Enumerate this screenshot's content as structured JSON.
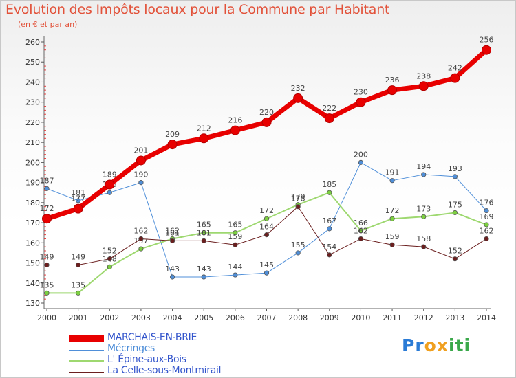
{
  "title": "Evolution des Impôts locaux pour la Commune par Habitant",
  "subtitle": "(en € et par an)",
  "logo": {
    "letters": [
      "P",
      "r",
      "o",
      "x",
      "i",
      "t",
      "i"
    ],
    "colors": [
      "#2a7bd6",
      "#2a7bd6",
      "#f0a020",
      "#f0a020",
      "#3aa84a",
      "#3aa84a",
      "#3aa84a"
    ]
  },
  "chart_data": {
    "type": "line",
    "x": [
      "2000",
      "2001",
      "2002",
      "2003",
      "2004",
      "2005",
      "2006",
      "2007",
      "2008",
      "2009",
      "2010",
      "2011",
      "2012",
      "2013",
      "2014"
    ],
    "yticks": [
      130,
      140,
      150,
      160,
      170,
      180,
      190,
      200,
      210,
      220,
      230,
      240,
      250,
      260
    ],
    "ylim": [
      130,
      260
    ],
    "grid": false,
    "legend_position": "bottom-left",
    "series": [
      {
        "name": "Mécringes",
        "color": "#4f8fd9",
        "marker": "#4f8fd9",
        "width": 1,
        "values": [
          187,
          181,
          185,
          190,
          143,
          143,
          144,
          145,
          155,
          167,
          200,
          191,
          194,
          193,
          176
        ]
      },
      {
        "name": "L' Épine-aux-Bois",
        "color": "#9ed870",
        "marker": "#7cd040",
        "width": 2,
        "values": [
          135,
          135,
          148,
          157,
          162,
          165,
          165,
          172,
          179,
          185,
          166,
          172,
          173,
          175,
          169
        ]
      },
      {
        "name": "La Celle-sous-Montmirail",
        "color": "#6b1f1f",
        "marker": "#6b1f1f",
        "width": 1,
        "values": [
          149,
          149,
          152,
          162,
          161,
          161,
          159,
          164,
          178,
          154,
          162,
          159,
          158,
          152,
          162
        ]
      },
      {
        "name": "MARCHAIS-EN-BRIE",
        "color": "#e80000",
        "marker": "#e80000",
        "width": 7,
        "values": [
          172,
          177,
          189,
          201,
          209,
          212,
          216,
          220,
          232,
          222,
          230,
          236,
          238,
          242,
          256
        ]
      }
    ]
  }
}
